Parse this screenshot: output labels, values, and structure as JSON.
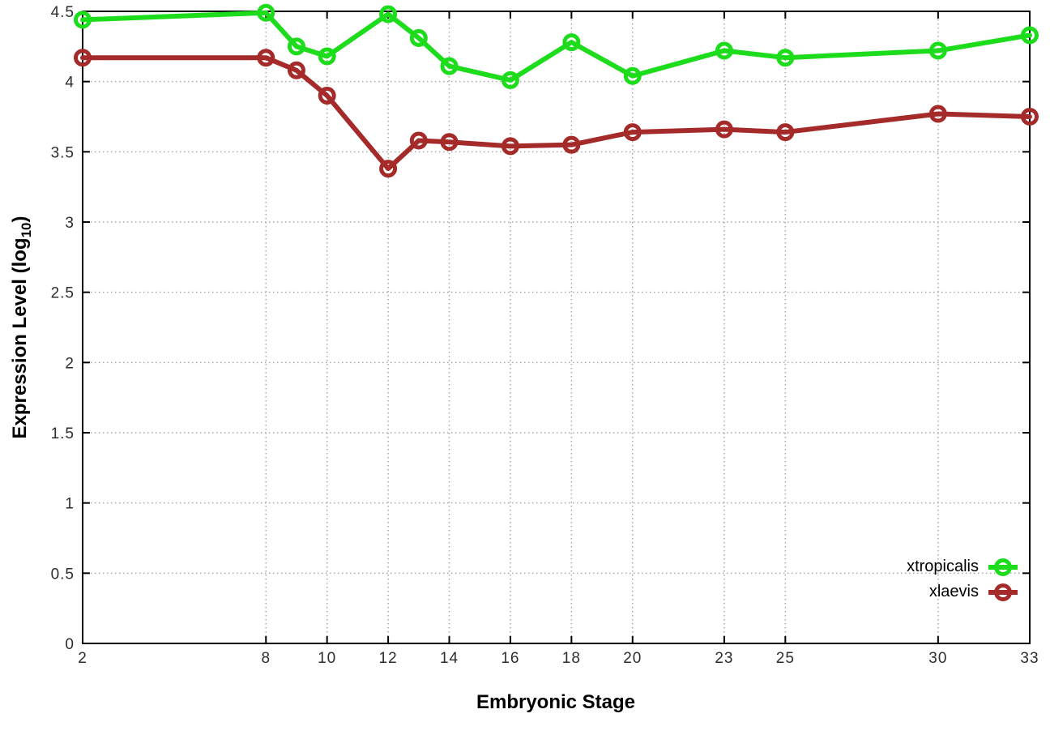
{
  "figure": {
    "xlabel": "Embryonic Stage",
    "ylabel_prefix": "Expression Level (log",
    "ylabel_sub": "10",
    "ylabel_suffix": ")"
  },
  "chart_data": {
    "type": "line",
    "title": "",
    "xlabel": "Embryonic Stage",
    "ylabel": "Expression Level (log10)",
    "x": [
      2,
      8,
      9,
      10,
      12,
      13,
      14,
      16,
      18,
      20,
      23,
      25,
      30,
      33
    ],
    "series": [
      {
        "name": "xtropicalis",
        "color": "#1cdc1c",
        "values": [
          4.44,
          4.49,
          4.25,
          4.18,
          4.48,
          4.31,
          4.11,
          4.01,
          4.28,
          4.04,
          4.22,
          4.17,
          4.22,
          4.33
        ]
      },
      {
        "name": "xlaevis",
        "color": "#a52a2a",
        "values": [
          4.17,
          4.17,
          4.08,
          3.9,
          3.38,
          3.58,
          3.57,
          3.54,
          3.55,
          3.64,
          3.66,
          3.64,
          3.77,
          3.75
        ]
      }
    ],
    "xlim": [
      2,
      33
    ],
    "ylim": [
      0,
      4.5
    ],
    "x_ticks": [
      2,
      8,
      10,
      12,
      14,
      16,
      18,
      20,
      23,
      25,
      30,
      33
    ],
    "y_ticks": [
      0,
      0.5,
      1,
      1.5,
      2,
      2.5,
      3,
      3.5,
      4,
      4.5
    ],
    "grid": true,
    "grid_style": "dotted",
    "grid_color": "#a8a8a8",
    "axis_color": "#000000",
    "tick_label_color": "#2d2d2d",
    "marker": "open-circle",
    "line_width": 6,
    "legend_position": "inside-bottom-right"
  }
}
